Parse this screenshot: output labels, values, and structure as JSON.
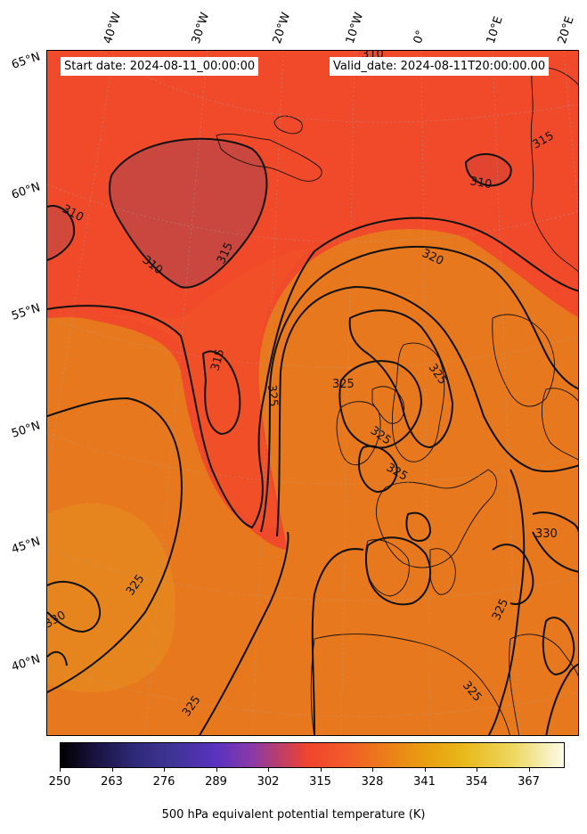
{
  "header": {
    "start_date": "Start date: 2024-08-11_00:00:00",
    "valid_date": "Valid_date: 2024-08-11T20:00:00.00"
  },
  "longitude_labels": [
    "40°W",
    "30°W",
    "20°W",
    "10°W",
    "0°",
    "10°E",
    "20°E"
  ],
  "latitude_labels": [
    "65°N",
    "60°N",
    "55°N",
    "50°N",
    "45°N",
    "40°N"
  ],
  "contour_labels": [
    "310",
    "310",
    "310",
    "310",
    "315",
    "315",
    "315",
    "320",
    "325",
    "325",
    "325",
    "325",
    "325",
    "325",
    "325",
    "325",
    "330",
    "330"
  ],
  "colorbar": {
    "ticks": [
      "250",
      "263",
      "276",
      "289",
      "302",
      "315",
      "328",
      "341",
      "354",
      "367"
    ],
    "title": "500 hPa equivalent potential temperature (K)"
  },
  "colors": {
    "low_theta": "#cc4a3c",
    "mid_theta": "#f04a2a",
    "high_theta": "#e8801a",
    "contour": "#111111"
  }
}
